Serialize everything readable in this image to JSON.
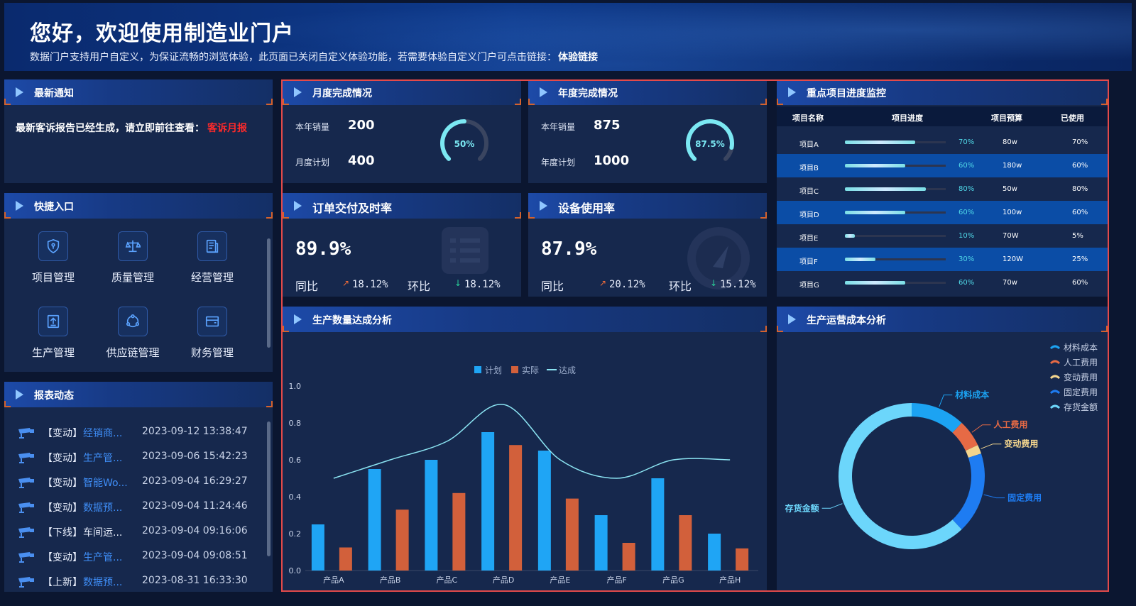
{
  "banner": {
    "title": "您好，欢迎使用制造业门户",
    "subtitle": "数据门户支持用户自定义，为保证流畅的浏览体验，此页面已关闭自定义体验功能，若需要体验自定义门户可点击链接：",
    "link": "体验链接"
  },
  "notice": {
    "title": "最新通知",
    "text": "最新客诉报告已经生成，请立即前往查看：",
    "link": "客诉月报"
  },
  "quick": {
    "title": "快捷入口",
    "items": [
      {
        "label": "项目管理",
        "icon": "shield-keyhole-icon"
      },
      {
        "label": "质量管理",
        "icon": "scale-icon"
      },
      {
        "label": "经营管理",
        "icon": "document-icon"
      },
      {
        "label": "生产管理",
        "icon": "upload-box-icon"
      },
      {
        "label": "供应链管理",
        "icon": "network-icon"
      },
      {
        "label": "财务管理",
        "icon": "wallet-icon"
      }
    ]
  },
  "reports": {
    "title": "报表动态",
    "items": [
      {
        "type": "【变动】",
        "name": "经销商...",
        "time": "2023-09-12 13:38:47",
        "link": true
      },
      {
        "type": "【变动】",
        "name": "生产管...",
        "time": "2023-09-06 15:42:23",
        "link": true
      },
      {
        "type": "【变动】",
        "name": "智能Wo...",
        "time": "2023-09-04 16:29:27",
        "link": true
      },
      {
        "type": "【变动】",
        "name": "数据预...",
        "time": "2023-09-04 11:24:46",
        "link": true
      },
      {
        "type": "【下线】",
        "name": "车间运...",
        "time": "2023-09-04 09:16:06",
        "link": false
      },
      {
        "type": "【变动】",
        "name": "生产管...",
        "time": "2023-09-04 09:08:51",
        "link": true
      },
      {
        "type": "【上新】",
        "name": "数据预...",
        "time": "2023-08-31 16:33:30",
        "link": true
      }
    ]
  },
  "monthly": {
    "title": "月度完成情况",
    "sales_label": "本年销量",
    "sales": "200",
    "plan_label": "月度计划",
    "plan": "400",
    "gauge": "50%",
    "gauge_value": 0.5
  },
  "yearly": {
    "title": "年度完成情况",
    "sales_label": "本年销量",
    "sales": "875",
    "plan_label": "年度计划",
    "plan": "1000",
    "gauge": "87.5%",
    "gauge_value": 0.875
  },
  "delivery": {
    "title": "订单交付及时率",
    "value": "89.9%",
    "yoy_label": "同比",
    "yoy": "18.12%",
    "mom_label": "环比",
    "mom": "18.12%"
  },
  "equipment": {
    "title": "设备使用率",
    "value": "87.9%",
    "yoy_label": "同比",
    "yoy": "20.12%",
    "mom_label": "环比",
    "mom": "15.12%"
  },
  "projects": {
    "title": "重点项目进度监控",
    "headers": [
      "项目名称",
      "项目进度",
      "项目预算",
      "已使用"
    ],
    "rows": [
      {
        "name": "项目A",
        "progress": 0.7,
        "progress_text": "70%",
        "budget": "80w",
        "used": "70%"
      },
      {
        "name": "项目B",
        "progress": 0.6,
        "progress_text": "60%",
        "budget": "180w",
        "used": "60%"
      },
      {
        "name": "项目C",
        "progress": 0.8,
        "progress_text": "80%",
        "budget": "50w",
        "used": "80%"
      },
      {
        "name": "项目D",
        "progress": 0.6,
        "progress_text": "60%",
        "budget": "100w",
        "used": "60%"
      },
      {
        "name": "项目E",
        "progress": 0.1,
        "progress_text": "10%",
        "budget": "70W",
        "used": "5%"
      },
      {
        "name": "项目F",
        "progress": 0.3,
        "progress_text": "30%",
        "budget": "120W",
        "used": "25%"
      },
      {
        "name": "项目G",
        "progress": 0.6,
        "progress_text": "60%",
        "budget": "70w",
        "used": "60%"
      }
    ]
  },
  "production": {
    "title": "生产数量达成分析"
  },
  "cost": {
    "title": "生产运营成本分析"
  },
  "colors": {
    "plan": "#1fa5f5",
    "actual": "#d2603b",
    "line": "#8be4f2"
  },
  "chart_data": [
    {
      "type": "bar",
      "title": "生产数量达成分析",
      "categories": [
        "产品A",
        "产品B",
        "产品C",
        "产品D",
        "产品E",
        "产品F",
        "产品G",
        "产品H"
      ],
      "series": [
        {
          "name": "计划",
          "type": "bar",
          "values": [
            0.25,
            0.55,
            0.6,
            0.75,
            0.65,
            0.3,
            0.5,
            0.2
          ]
        },
        {
          "name": "实际",
          "type": "bar",
          "values": [
            0.125,
            0.33,
            0.42,
            0.68,
            0.39,
            0.15,
            0.3,
            0.12
          ]
        },
        {
          "name": "达成",
          "type": "line",
          "values": [
            0.5,
            0.6,
            0.7,
            0.9,
            0.6,
            0.5,
            0.6,
            0.6
          ]
        }
      ],
      "ylim": [
        0,
        1.0
      ],
      "yticks": [
        "0.0",
        "0.2",
        "0.4",
        "0.6",
        "0.8",
        "1.0"
      ],
      "legend": "top-center"
    },
    {
      "type": "pie",
      "title": "生产运营成本分析",
      "labels": [
        "材料成本",
        "人工费用",
        "变动费用",
        "固定费用",
        "存货金额"
      ],
      "values": [
        12,
        6,
        2,
        18,
        62
      ],
      "colors": [
        "#1ca3f2",
        "#e66a45",
        "#f3d58e",
        "#1e7cf2",
        "#6cd6fb"
      ],
      "legend": "top-right"
    }
  ]
}
